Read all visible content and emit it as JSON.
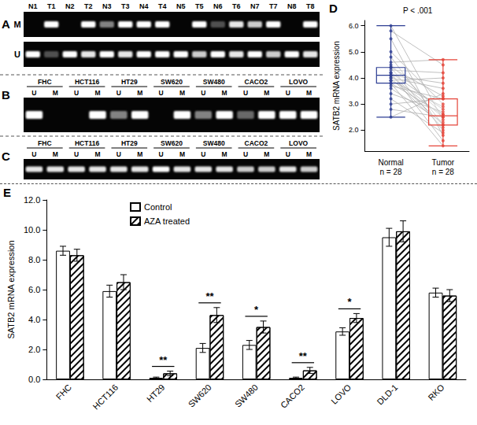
{
  "gel_A": {
    "panel": "A",
    "lanes": [
      "N1",
      "T1",
      "N2",
      "T2",
      "N3",
      "T3",
      "N4",
      "T4",
      "N5",
      "T5",
      "N6",
      "T6",
      "N7",
      "T7",
      "N8",
      "T8"
    ],
    "rows": [
      {
        "label": "M",
        "bands": [
          0,
          1,
          0,
          1,
          0.5,
          1,
          1,
          1,
          0,
          1,
          0.3,
          0.9,
          0.8,
          1,
          0,
          1
        ]
      },
      {
        "label": "U",
        "bands": [
          1,
          0.3,
          1,
          0.9,
          1,
          0.9,
          1,
          1,
          1,
          0.8,
          1,
          0.9,
          1,
          0.8,
          1,
          0.9
        ]
      }
    ]
  },
  "gel_B": {
    "panel": "B",
    "groups": [
      "FHC",
      "HCT116",
      "HT29",
      "SW620",
      "SW480",
      "CACO2",
      "LOVO"
    ],
    "lanes": [
      "U",
      "M",
      "U",
      "M",
      "U",
      "M",
      "U",
      "M",
      "U",
      "M",
      "U",
      "M",
      "U",
      "M"
    ],
    "bands": [
      1,
      0,
      0,
      1,
      0.5,
      1,
      0,
      1,
      0.5,
      1,
      0.4,
      1,
      1,
      1
    ]
  },
  "gel_C": {
    "panel": "C",
    "groups": [
      "FHC",
      "HCT116",
      "HT29",
      "SW620",
      "SW480",
      "CACO2",
      "LOVO"
    ],
    "lanes": [
      "U",
      "M",
      "U",
      "M",
      "U",
      "M",
      "U",
      "M",
      "U",
      "M",
      "U",
      "M",
      "U",
      "M"
    ],
    "bands": [
      0.9,
      0.9,
      0.9,
      0.9,
      0.9,
      0.9,
      1,
      0.9,
      0.9,
      0.9,
      0.8,
      0.8,
      0.9,
      0.8
    ]
  },
  "chart_data": [
    {
      "panel": "D",
      "type": "boxplot",
      "categories": [
        "Normal",
        "Tumor"
      ],
      "category_counts": [
        "n = 28",
        "n = 28"
      ],
      "colors": [
        "#2e3f94",
        "#e5453a"
      ],
      "ylabel": "SATB2 mRNA expression",
      "annotation": "P < .001",
      "ylim": [
        1.2,
        6.2
      ],
      "yticks": [
        {
          "value": 2,
          "label": "2.0"
        },
        {
          "value": 3,
          "label": "3.0"
        },
        {
          "value": 4,
          "label": "4.0"
        },
        {
          "value": 5,
          "label": "5.0"
        },
        {
          "value": 6,
          "label": "6.0"
        }
      ],
      "boxes": [
        [
          2.5,
          3.8,
          4.1,
          4.4,
          6.0
        ],
        [
          1.4,
          2.2,
          2.55,
          3.2,
          4.7
        ]
      ],
      "points": [
        [
          6.0,
          5.8,
          5.5,
          5.0,
          4.8,
          4.6,
          4.5,
          4.4,
          4.4,
          4.3,
          4.2,
          4.2,
          4.1,
          4.1,
          4.1,
          4.0,
          4.0,
          3.9,
          3.9,
          3.8,
          3.8,
          3.7,
          3.6,
          3.4,
          3.2,
          3.0,
          2.8,
          2.5
        ],
        [
          2.4,
          4.5,
          1.8,
          3.0,
          2.2,
          4.7,
          2.6,
          3.3,
          2.0,
          4.2,
          2.8,
          1.6,
          3.8,
          2.5,
          2.2,
          3.6,
          2.1,
          2.9,
          4.0,
          2.6,
          1.4,
          3.2,
          2.3,
          2.7,
          1.9,
          3.2,
          2.5,
          3.4
        ]
      ],
      "grid": false
    },
    {
      "panel": "E",
      "type": "bar",
      "categories": [
        "FHC",
        "HCT116",
        "HT29",
        "SW620",
        "SW480",
        "CACO2",
        "LOVO",
        "DLD-1",
        "RKO"
      ],
      "series": [
        {
          "name": "Control",
          "color": "#ffffff",
          "values": [
            8.6,
            5.9,
            0.1,
            2.1,
            2.3,
            0.1,
            3.2,
            9.5,
            5.8
          ],
          "errors": [
            0.3,
            0.4,
            0.05,
            0.3,
            0.3,
            0.05,
            0.25,
            0.6,
            0.3
          ]
        },
        {
          "name": "AZA treated",
          "color": "#ffffff",
          "values": [
            8.3,
            6.5,
            0.4,
            4.3,
            3.5,
            0.6,
            4.1,
            9.9,
            5.6
          ],
          "errors": [
            0.4,
            0.5,
            0.15,
            0.5,
            0.4,
            0.2,
            0.3,
            0.7,
            0.4
          ]
        }
      ],
      "annotations": [
        null,
        null,
        "**",
        "**",
        "*",
        "**",
        "*",
        null,
        null
      ],
      "ylabel": "SATB2 mRNA expression",
      "ylim": [
        0,
        12
      ],
      "yticks": [
        {
          "value": 0,
          "label": "0.0"
        },
        {
          "value": 2,
          "label": "2.0"
        },
        {
          "value": 4,
          "label": "4.0"
        },
        {
          "value": 6,
          "label": "6.0"
        },
        {
          "value": 8,
          "label": "8.0"
        },
        {
          "value": 10,
          "label": "10.0"
        },
        {
          "value": 12,
          "label": "12.0"
        }
      ],
      "legend": "top-left",
      "grid": false
    }
  ]
}
